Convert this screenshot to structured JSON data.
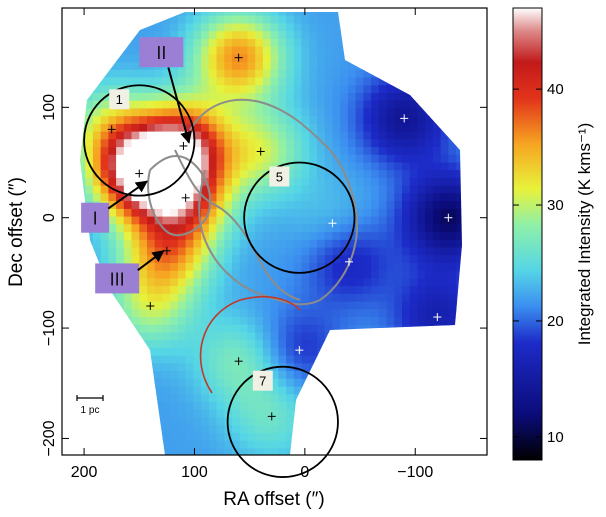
{
  "chart_data": {
    "type": "heatmap",
    "title": "",
    "xlabel": "RA offset (″)",
    "ylabel": "Dec offset (″)",
    "xlim": [
      220,
      -165
    ],
    "ylim": [
      -215,
      190
    ],
    "x_ticks": [
      {
        "value": 200,
        "label": "200"
      },
      {
        "value": 100,
        "label": "100"
      },
      {
        "value": 0,
        "label": "0"
      },
      {
        "value": -100,
        "label": "−100"
      }
    ],
    "y_ticks": [
      {
        "value": 100,
        "label": "100"
      },
      {
        "value": 0,
        "label": "0"
      },
      {
        "value": -100,
        "label": "−100"
      },
      {
        "value": -200,
        "label": "−200"
      }
    ],
    "colorbar": {
      "label": "Integrated Intensity (K kms⁻¹)",
      "range": [
        8,
        47
      ],
      "ticks": [
        {
          "value": 40,
          "label": "40"
        },
        {
          "value": 30,
          "label": "30"
        },
        {
          "value": 20,
          "label": "20"
        },
        {
          "value": 10,
          "label": "10"
        }
      ]
    },
    "peaks": [
      {
        "x": 150,
        "y": 40,
        "value": 46
      },
      {
        "x": 110,
        "y": 65,
        "value": 42
      },
      {
        "x": 108,
        "y": 18,
        "value": 36
      },
      {
        "x": 125,
        "y": -30,
        "value": 34
      },
      {
        "x": 60,
        "y": 145,
        "value": 36
      },
      {
        "x": 175,
        "y": 80,
        "value": 30
      },
      {
        "x": 40,
        "y": 60,
        "value": 30
      },
      {
        "x": 60,
        "y": -130,
        "value": 27
      },
      {
        "x": 30,
        "y": -180,
        "value": 26
      },
      {
        "x": 140,
        "y": -80,
        "value": 29
      },
      {
        "x": -25,
        "y": -5,
        "value": 24
      },
      {
        "x": -130,
        "y": 0,
        "value": 11
      },
      {
        "x": -90,
        "y": 90,
        "value": 14
      },
      {
        "x": -40,
        "y": -40,
        "value": 17
      },
      {
        "x": -120,
        "y": -90,
        "value": 16
      },
      {
        "x": 5,
        "y": -120,
        "value": 18
      }
    ],
    "base_value": 22,
    "circles": [
      {
        "label": "1",
        "x": 150,
        "y": 70,
        "r": 50
      },
      {
        "label": "5",
        "x": 5,
        "y": 0,
        "r": 50
      },
      {
        "label": "7",
        "x": 20,
        "y": -185,
        "r": 50
      }
    ],
    "region_labels": [
      {
        "label": "I",
        "x": 190,
        "y": 0,
        "arrow_to": {
          "x": 143,
          "y": 33
        }
      },
      {
        "label": "II",
        "x": 130,
        "y": 150,
        "arrow_to": {
          "x": 105,
          "y": 68
        }
      },
      {
        "label": "III",
        "x": 170,
        "y": -55,
        "arrow_to": {
          "x": 128,
          "y": -30
        }
      }
    ],
    "scale_bar": {
      "label": "1 pc"
    }
  }
}
